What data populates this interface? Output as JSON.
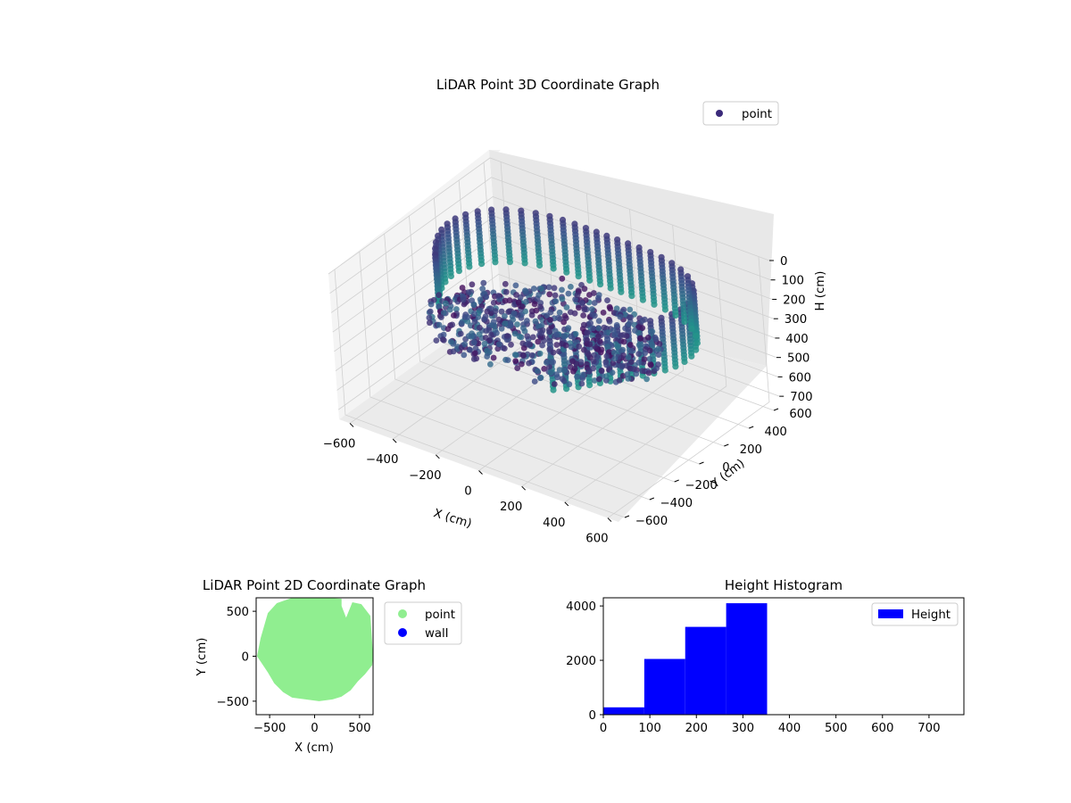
{
  "chart_data": [
    {
      "type": "scatter",
      "projection": "3d",
      "title": "LiDAR Point 3D Coordinate Graph",
      "xlabel": "X (cm)",
      "ylabel": "Y (cm)",
      "zlabel": "H (cm)",
      "xticks": [
        "−600",
        "−400",
        "−200",
        "0",
        "200",
        "400",
        "600"
      ],
      "yticks": [
        "−600",
        "−400",
        "−200",
        "0",
        "200",
        "400",
        "600"
      ],
      "zticks": [
        "0",
        "100",
        "200",
        "300",
        "400",
        "500",
        "600",
        "700"
      ],
      "xlim": [
        -650,
        650
      ],
      "ylim": [
        -650,
        650
      ],
      "zlim": [
        0,
        750
      ],
      "z_inverted": true,
      "legend": {
        "label": "point",
        "placement": "top-right",
        "color": "#3b2a7a"
      },
      "colormap": "viridis",
      "grid": true,
      "series": [
        {
          "name": "point",
          "description_shape": "ring of vertical stripes plus dense floor sheet",
          "points": []
        }
      ]
    },
    {
      "type": "scatter",
      "title": "LiDAR Point 2D Coordinate Graph",
      "xlabel": "X (cm)",
      "ylabel": "Y (cm)",
      "xticks": [
        "−500",
        "0",
        "500"
      ],
      "yticks": [
        "−500",
        "0",
        "500"
      ],
      "xlim": [
        -650,
        650
      ],
      "ylim": [
        -650,
        650
      ],
      "legend": {
        "placement": "outside-right",
        "entries": [
          {
            "label": "point",
            "color": "#90ee90"
          },
          {
            "label": "wall",
            "color": "#0000ff"
          }
        ]
      },
      "series": [
        {
          "name": "point",
          "color": "#90ee90",
          "outline_xy": [
            [
              -640,
              0
            ],
            [
              -600,
              200
            ],
            [
              -520,
              480
            ],
            [
              -420,
              590
            ],
            [
              -250,
              650
            ],
            [
              -80,
              650
            ],
            [
              150,
              650
            ],
            [
              300,
              640
            ],
            [
              300,
              560
            ],
            [
              350,
              430
            ],
            [
              420,
              600
            ],
            [
              520,
              580
            ],
            [
              620,
              450
            ],
            [
              650,
              0
            ],
            [
              640,
              -100
            ],
            [
              560,
              -200
            ],
            [
              480,
              -280
            ],
            [
              400,
              -380
            ],
            [
              300,
              -450
            ],
            [
              200,
              -480
            ],
            [
              50,
              -500
            ],
            [
              -100,
              -480
            ],
            [
              -250,
              -460
            ],
            [
              -350,
              -400
            ],
            [
              -450,
              -300
            ],
            [
              -520,
              -180
            ],
            [
              -600,
              -60
            ],
            [
              -640,
              0
            ]
          ]
        },
        {
          "name": "wall",
          "color": "#0000ff",
          "points": []
        }
      ]
    },
    {
      "type": "bar",
      "subtype": "histogram",
      "title": "Height Histogram",
      "xticks": [
        "0",
        "100",
        "200",
        "300",
        "400",
        "500",
        "600",
        "700"
      ],
      "yticks": [
        "0",
        "2000",
        "4000"
      ],
      "xlim": [
        0,
        775
      ],
      "ylim": [
        0,
        4300
      ],
      "bin_edges": [
        0,
        88,
        176,
        264,
        352,
        440,
        528,
        616,
        704,
        775
      ],
      "values": [
        270,
        2050,
        3230,
        4100,
        0,
        0,
        0,
        0,
        0
      ],
      "color": "#0000ff",
      "legend": {
        "label": "Height",
        "placement": "top-right",
        "color": "#0000ff"
      },
      "grid": false
    }
  ]
}
